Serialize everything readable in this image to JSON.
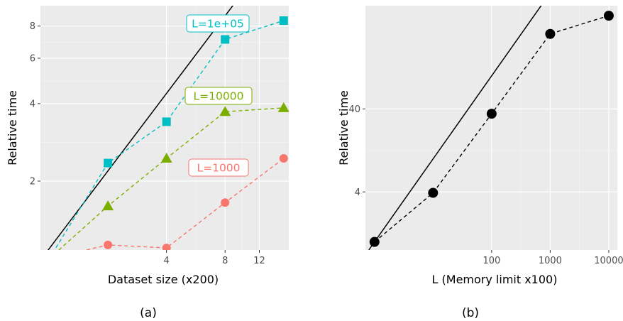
{
  "colors": {
    "panel_bg": "#ebebeb",
    "grid_major": "#ffffff",
    "grid_minor": "#f5f5f5",
    "reference_line": "#000000",
    "tick_text": "#4d4d4d"
  },
  "chart_data": [
    {
      "type": "line",
      "caption": "(a)",
      "xlabel": "Dataset size (x200)",
      "ylabel": "Relative time",
      "x_scale": "log",
      "y_scale": "log",
      "x_ticks": [
        4,
        8,
        12
      ],
      "y_ticks": [
        2,
        4,
        6,
        8
      ],
      "xlim": [
        0.9,
        17
      ],
      "ylim": [
        1.08,
        9.6
      ],
      "grid": true,
      "x": [
        1,
        2,
        4,
        8,
        16
      ],
      "reference_line": {
        "description": "slope 1 reference",
        "points": [
          [
            0.95,
            1.04
          ],
          [
            11.5,
            12.6
          ]
        ]
      },
      "series": [
        {
          "name": "L=1000",
          "color": "#f8766d",
          "marker": "circle",
          "values": [
            1.0,
            1.13,
            1.1,
            1.65,
            2.45
          ]
        },
        {
          "name": "L=10000",
          "color": "#7cae00",
          "marker": "triangle",
          "values": [
            1.0,
            1.6,
            2.45,
            3.72,
            3.85
          ]
        },
        {
          "name": "L=1e+05",
          "color": "#00bfc4",
          "marker": "square",
          "values": [
            1.0,
            2.35,
            3.4,
            7.1,
            8.4
          ]
        }
      ]
    },
    {
      "type": "line",
      "caption": "(b)",
      "xlabel": "L (Memory limit x100)",
      "ylabel": "Relative time",
      "x_scale": "log",
      "y_scale": "log",
      "x_ticks": [
        100,
        1000,
        10000
      ],
      "y_ticks": [
        4,
        40
      ],
      "xlim": [
        0.7,
        14000
      ],
      "ylim": [
        0.8,
        700
      ],
      "grid": true,
      "reference_line": {
        "description": "slope 1 reference",
        "points": [
          [
            0.8,
            0.8
          ],
          [
            800,
            800
          ]
        ]
      },
      "series": [
        {
          "color": "#000000",
          "marker": "circle",
          "x": [
            1,
            10,
            100,
            1000,
            10000
          ],
          "values": [
            1.0,
            3.9,
            35,
            320,
            530
          ]
        }
      ]
    }
  ]
}
